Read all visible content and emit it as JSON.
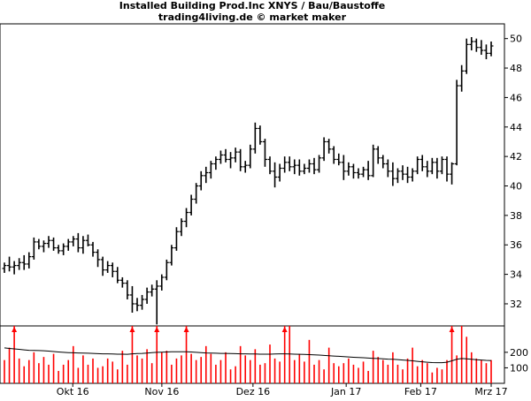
{
  "title": "Installed Building Prod.Inc XNYS / Bau/Baustoffe",
  "subtitle": "trading4living.de © market maker",
  "colors": {
    "price_bar": "#000000",
    "volume_bar": "#ff0000",
    "volume_avg": "#000000",
    "frame": "#000000",
    "background": "#ffffff"
  },
  "chart_data": [
    {
      "type": "ohlc",
      "title": "Installed Building Prod.Inc XNYS / Bau/Baustoffe",
      "subtitle": "trading4living.de © market maker",
      "x_ticks": [
        "Okt 16",
        "Nov 16",
        "Dez 16",
        "Jan 17",
        "Feb 17",
        "Mrz 17"
      ],
      "y_ticks": [
        32,
        34,
        36,
        38,
        40,
        42,
        44,
        46,
        48,
        50
      ],
      "ylim": [
        30.5,
        51
      ],
      "y_axis_side": "right",
      "grid": false,
      "series": [
        {
          "values": [
            [
              34.4,
              34.8,
              34.1,
              34.6
            ],
            [
              34.6,
              35.2,
              34.2,
              34.5
            ],
            [
              34.5,
              34.9,
              34.0,
              34.6
            ],
            [
              34.6,
              35.1,
              34.3,
              34.8
            ],
            [
              34.8,
              35.3,
              34.3,
              34.7
            ],
            [
              34.7,
              35.5,
              34.4,
              35.2
            ],
            [
              35.2,
              36.5,
              35.0,
              36.2
            ],
            [
              36.2,
              36.4,
              35.7,
              35.9
            ],
            [
              35.9,
              36.3,
              35.5,
              36.1
            ],
            [
              36.1,
              36.6,
              35.8,
              36.3
            ],
            [
              36.3,
              36.5,
              35.6,
              35.8
            ],
            [
              35.8,
              36.0,
              35.4,
              35.6
            ],
            [
              35.6,
              36.1,
              35.3,
              35.9
            ],
            [
              35.9,
              36.4,
              35.6,
              36.2
            ],
            [
              36.2,
              36.6,
              35.9,
              36.4
            ],
            [
              36.4,
              36.8,
              35.5,
              35.8
            ],
            [
              35.8,
              36.6,
              35.4,
              36.3
            ],
            [
              36.3,
              36.7,
              35.9,
              36.0
            ],
            [
              36.0,
              36.2,
              35.2,
              35.5
            ],
            [
              35.5,
              35.7,
              34.5,
              35.0
            ],
            [
              35.0,
              35.2,
              33.9,
              34.3
            ],
            [
              34.3,
              34.9,
              34.1,
              34.6
            ],
            [
              34.6,
              34.8,
              33.8,
              34.2
            ],
            [
              34.2,
              34.5,
              33.4,
              33.6
            ],
            [
              33.6,
              33.8,
              33.1,
              33.4
            ],
            [
              33.4,
              33.6,
              32.3,
              32.6
            ],
            [
              32.6,
              33.2,
              31.4,
              32.0
            ],
            [
              32.0,
              32.4,
              31.5,
              31.9
            ],
            [
              31.9,
              32.6,
              31.6,
              32.3
            ],
            [
              32.3,
              33.1,
              32.0,
              32.8
            ],
            [
              32.8,
              33.3,
              32.5,
              33.0
            ],
            [
              33.0,
              33.6,
              30.6,
              33.2
            ],
            [
              33.2,
              34.0,
              32.9,
              33.8
            ],
            [
              33.8,
              35.0,
              33.6,
              34.8
            ],
            [
              34.8,
              36.0,
              34.6,
              35.8
            ],
            [
              35.8,
              37.2,
              35.6,
              36.9
            ],
            [
              36.9,
              37.8,
              36.6,
              37.6
            ],
            [
              37.6,
              38.5,
              37.2,
              38.2
            ],
            [
              38.2,
              39.4,
              38.0,
              39.1
            ],
            [
              39.1,
              40.2,
              38.8,
              40.0
            ],
            [
              40.0,
              41.0,
              39.7,
              40.7
            ],
            [
              40.7,
              41.3,
              40.2,
              40.9
            ],
            [
              40.9,
              41.7,
              40.5,
              41.5
            ],
            [
              41.5,
              42.0,
              41.1,
              41.8
            ],
            [
              41.8,
              42.4,
              41.5,
              42.1
            ],
            [
              42.1,
              42.5,
              41.6,
              41.8
            ],
            [
              41.8,
              42.3,
              41.2,
              41.9
            ],
            [
              41.9,
              42.6,
              41.6,
              42.3
            ],
            [
              42.3,
              42.5,
              41.0,
              41.3
            ],
            [
              41.3,
              41.7,
              40.9,
              41.4
            ],
            [
              41.4,
              42.8,
              41.2,
              42.5
            ],
            [
              42.5,
              44.3,
              42.2,
              43.9
            ],
            [
              43.9,
              44.1,
              42.8,
              43.0
            ],
            [
              43.0,
              43.2,
              41.3,
              41.8
            ],
            [
              41.8,
              42.0,
              40.8,
              41.0
            ],
            [
              41.0,
              41.6,
              39.9,
              40.6
            ],
            [
              40.6,
              41.5,
              40.3,
              41.2
            ],
            [
              41.2,
              42.0,
              40.9,
              41.6
            ],
            [
              41.6,
              42.0,
              41.0,
              41.3
            ],
            [
              41.3,
              41.8,
              40.8,
              41.4
            ],
            [
              41.4,
              41.8,
              40.7,
              41.0
            ],
            [
              41.0,
              41.5,
              40.8,
              41.2
            ],
            [
              41.2,
              41.8,
              40.9,
              41.5
            ],
            [
              41.5,
              41.9,
              40.8,
              41.1
            ],
            [
              41.1,
              42.1,
              40.9,
              41.9
            ],
            [
              41.9,
              43.3,
              41.7,
              43.0
            ],
            [
              43.0,
              43.2,
              42.2,
              42.5
            ],
            [
              42.5,
              42.7,
              41.5,
              41.8
            ],
            [
              41.8,
              42.2,
              41.4,
              41.6
            ],
            [
              41.6,
              42.1,
              40.4,
              41.0
            ],
            [
              41.0,
              41.6,
              40.7,
              41.3
            ],
            [
              41.3,
              41.5,
              40.5,
              40.9
            ],
            [
              40.9,
              41.2,
              40.5,
              40.8
            ],
            [
              40.8,
              41.3,
              40.6,
              41.1
            ],
            [
              41.1,
              41.7,
              40.4,
              40.7
            ],
            [
              40.7,
              42.8,
              40.6,
              42.5
            ],
            [
              42.5,
              42.7,
              41.5,
              41.9
            ],
            [
              41.9,
              42.1,
              41.2,
              41.5
            ],
            [
              41.5,
              41.8,
              40.6,
              41.0
            ],
            [
              41.0,
              41.6,
              40.0,
              40.5
            ],
            [
              40.5,
              41.2,
              40.2,
              41.0
            ],
            [
              41.0,
              41.4,
              40.4,
              40.8
            ],
            [
              40.8,
              41.3,
              40.2,
              40.6
            ],
            [
              40.6,
              41.2,
              40.3,
              41.0
            ],
            [
              41.0,
              42.0,
              40.8,
              41.8
            ],
            [
              41.8,
              42.1,
              41.0,
              41.3
            ],
            [
              41.3,
              41.7,
              40.6,
              41.0
            ],
            [
              41.0,
              41.9,
              40.8,
              41.6
            ],
            [
              41.6,
              41.9,
              40.5,
              41.0
            ],
            [
              41.0,
              42.0,
              40.8,
              41.8
            ],
            [
              41.8,
              42.0,
              40.3,
              40.8
            ],
            [
              40.8,
              41.6,
              40.1,
              41.5
            ],
            [
              41.5,
              47.2,
              41.4,
              46.8
            ],
            [
              46.8,
              48.2,
              46.4,
              47.8
            ],
            [
              47.8,
              50.0,
              47.6,
              49.6
            ],
            [
              49.6,
              50.1,
              49.2,
              49.8
            ],
            [
              49.8,
              50.0,
              49.1,
              49.4
            ],
            [
              49.4,
              49.9,
              48.9,
              49.2
            ],
            [
              49.2,
              49.6,
              48.6,
              49.0
            ],
            [
              49.0,
              49.8,
              48.8,
              49.5
            ]
          ]
        }
      ]
    },
    {
      "type": "bar",
      "y_ticks": [
        100,
        200
      ],
      "ylim": [
        0,
        370
      ],
      "grid": false,
      "series": [
        {
          "values": [
            150,
            230,
            370,
            160,
            110,
            150,
            200,
            130,
            170,
            120,
            190,
            80,
            120,
            150,
            240,
            100,
            180,
            120,
            160,
            100,
            110,
            160,
            140,
            90,
            210,
            120,
            370,
            180,
            160,
            220,
            130,
            370,
            200,
            210,
            120,
            160,
            180,
            370,
            190,
            150,
            170,
            240,
            190,
            120,
            150,
            200,
            90,
            110,
            240,
            180,
            150,
            220,
            120,
            130,
            250,
            160,
            140,
            370,
            370,
            150,
            190,
            140,
            280,
            120,
            150,
            90,
            230,
            130,
            110,
            130,
            160,
            120,
            100,
            140,
            80,
            210,
            170,
            150,
            120,
            200,
            120,
            90,
            160,
            230,
            110,
            150,
            130,
            70,
            100,
            90,
            150,
            370,
            180,
            370,
            300,
            200,
            160,
            150,
            130,
            150
          ]
        },
        {
          "values": [
            228,
            225,
            222,
            219,
            216,
            213,
            212,
            211,
            210,
            208,
            205,
            202,
            200,
            198,
            197,
            196,
            195,
            194,
            193,
            191,
            190,
            190,
            189,
            188,
            188,
            187,
            190,
            192,
            193,
            195,
            198,
            200,
            201,
            202,
            203,
            204,
            204,
            203,
            202,
            200,
            198,
            196,
            195,
            194,
            193,
            193,
            192,
            191,
            190,
            190,
            189,
            189,
            188,
            188,
            188,
            189,
            190,
            190,
            189,
            188,
            187,
            186,
            185,
            184,
            182,
            180,
            178,
            176,
            174,
            172,
            170,
            168,
            166,
            165,
            163,
            161,
            160,
            158,
            156,
            155,
            153,
            150,
            148,
            145,
            142,
            139,
            136,
            134,
            133,
            133,
            136,
            145,
            155,
            160,
            158,
            155,
            152,
            150,
            148,
            147
          ]
        }
      ],
      "markers": [
        2,
        26,
        31,
        37,
        57,
        91
      ]
    }
  ]
}
